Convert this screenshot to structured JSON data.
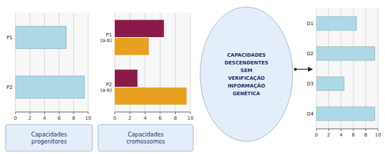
{
  "chart_data": [
    {
      "type": "bar",
      "orientation": "horizontal",
      "categories": [
        "P1",
        "P2"
      ],
      "values": [
        7.0,
        9.5
      ],
      "color": "#add8e6",
      "xlim": [
        0,
        10
      ],
      "xticks": [
        0,
        2,
        4,
        6,
        8,
        10
      ],
      "grid": true,
      "annotation": "Capacidades\nprogenitores"
    },
    {
      "type": "bar",
      "orientation": "horizontal",
      "categories": [
        "P1\n(a-b)",
        "P2\n(a-b)"
      ],
      "series": [
        {
          "color": "#8b1a4a",
          "values": [
            6.5,
            3.0
          ]
        },
        {
          "color": "#e8a020",
          "values": [
            4.5,
            9.5
          ]
        }
      ],
      "xlim": [
        0,
        10
      ],
      "xticks": [
        0,
        2,
        4,
        6,
        8,
        10
      ],
      "grid": true,
      "annotation": "Capacidades\ncromossomos"
    },
    {
      "type": "bar",
      "orientation": "horizontal",
      "categories": [
        "D1",
        "D2",
        "D3",
        "D4"
      ],
      "values": [
        6.5,
        9.5,
        4.5,
        9.5
      ],
      "color": "#add8e6",
      "xlim": [
        0,
        10
      ],
      "xticks": [
        0,
        2,
        4,
        6,
        8,
        10
      ],
      "grid": true,
      "annotation": "CAPACIDADES\nDESCENDENTES\nSEM\nVERIFICAÇÃO\nINFORMAÇÃO\nGENÉTICA"
    }
  ]
}
